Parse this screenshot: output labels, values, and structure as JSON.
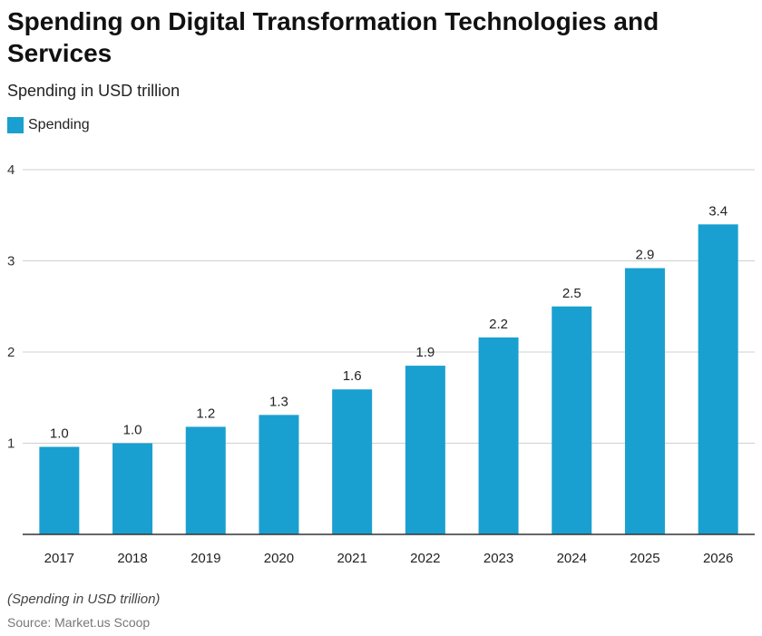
{
  "chart_data": {
    "type": "bar",
    "title": "Spending on Digital Transformation Technologies and Services",
    "subtitle": "Spending in USD trillion",
    "categories": [
      "2017",
      "2018",
      "2019",
      "2020",
      "2021",
      "2022",
      "2023",
      "2024",
      "2025",
      "2026"
    ],
    "series": [
      {
        "name": "Spending",
        "color": "#1aa0d0",
        "values": [
          0.96,
          1.0,
          1.18,
          1.31,
          1.59,
          1.85,
          2.16,
          2.5,
          2.92,
          3.4
        ],
        "labels": [
          "1.0",
          "1.0",
          "1.2",
          "1.3",
          "1.6",
          "1.9",
          "2.2",
          "2.5",
          "2.9",
          "3.4"
        ]
      }
    ],
    "yticks": [
      "1",
      "2",
      "3",
      "4"
    ],
    "ylim": [
      0,
      4
    ],
    "grid": true,
    "legend": "top-left",
    "note": "(Spending in USD trillion)",
    "source": "Source: Market.us Scoop"
  }
}
